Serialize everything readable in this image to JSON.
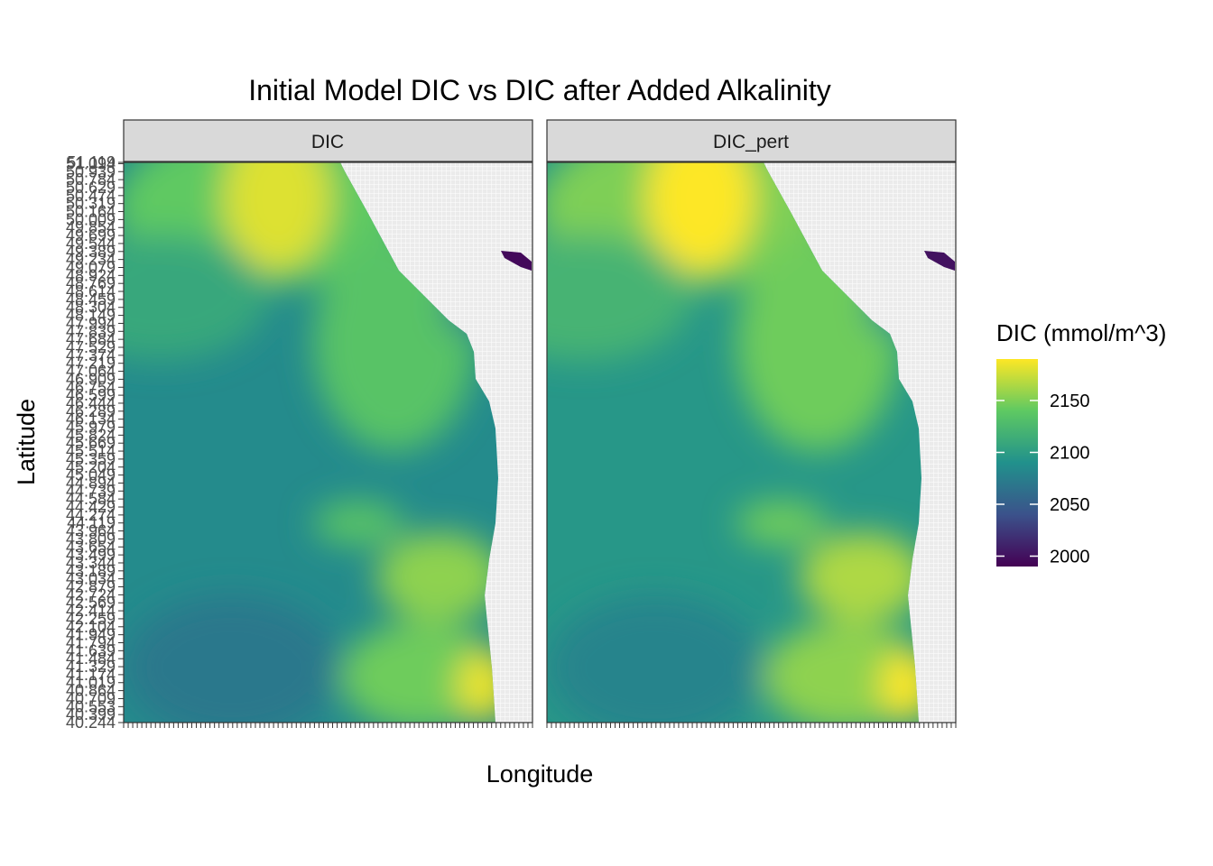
{
  "chart_data": {
    "type": "heatmap",
    "title": "Initial Model DIC vs DIC after Added Alkalinity",
    "xlabel": "Longitude",
    "ylabel": "Latitude",
    "facets": [
      "DIC",
      "DIC_pert"
    ],
    "y_tick_labels": [
      "40.244",
      "40.399",
      "40.553",
      "40.709",
      "40.864",
      "41.019",
      "41.174",
      "41.329",
      "41.484",
      "41.639",
      "41.794",
      "41.949",
      "42.104",
      "42.259",
      "42.414",
      "42.569",
      "42.724",
      "42.879",
      "43.034",
      "43.189",
      "43.344",
      "43.499",
      "43.654",
      "43.809",
      "43.964",
      "44.119",
      "44.274",
      "44.429",
      "44.584",
      "44.739",
      "44.894",
      "45.049",
      "45.204",
      "45.359",
      "45.514",
      "45.669",
      "45.824",
      "45.979",
      "46.134",
      "46.289",
      "46.444",
      "46.599",
      "46.754",
      "46.909",
      "47.064",
      "47.219",
      "47.374",
      "47.529",
      "47.684",
      "47.839",
      "47.994",
      "48.149",
      "48.304",
      "48.459",
      "48.614",
      "48.769",
      "48.924",
      "49.079",
      "49.234",
      "49.389",
      "49.544",
      "49.699",
      "49.854",
      "50.009",
      "50.164",
      "50.319",
      "50.474",
      "50.629",
      "50.784",
      "50.939",
      "51.094",
      "51.119"
    ],
    "ylim": [
      40.244,
      51.119
    ],
    "grid": true,
    "legend": {
      "title": "DIC (mmol/m^3)",
      "placement": "right",
      "breaks": [
        2000,
        2050,
        2100,
        2150
      ],
      "labels": [
        "2000",
        "2050",
        "2100",
        "2150"
      ],
      "range": [
        1990,
        2190
      ],
      "colors": [
        "#440154",
        "#3b528b",
        "#21918c",
        "#5ec962",
        "#fde725"
      ]
    },
    "land_color": "#ebebeb",
    "field_summary": [
      {
        "facet": "DIC",
        "region": "northwest offshore",
        "dic_approx": 2150
      },
      {
        "facet": "DIC",
        "region": "central offshore",
        "dic_approx": 2085
      },
      {
        "facet": "DIC",
        "region": "coastal south",
        "dic_approx": 2165
      },
      {
        "facet": "DIC",
        "region": "inland enclosed sea (northeast)",
        "dic_approx": 1995
      },
      {
        "facet": "DIC_pert",
        "region": "northwest offshore",
        "dic_approx": 2160
      },
      {
        "facet": "DIC_pert",
        "region": "central offshore",
        "dic_approx": 2095
      },
      {
        "facet": "DIC_pert",
        "region": "coastal south",
        "dic_approx": 2175
      },
      {
        "facet": "DIC_pert",
        "region": "inland enclosed sea (northeast)",
        "dic_approx": 2000
      }
    ]
  }
}
